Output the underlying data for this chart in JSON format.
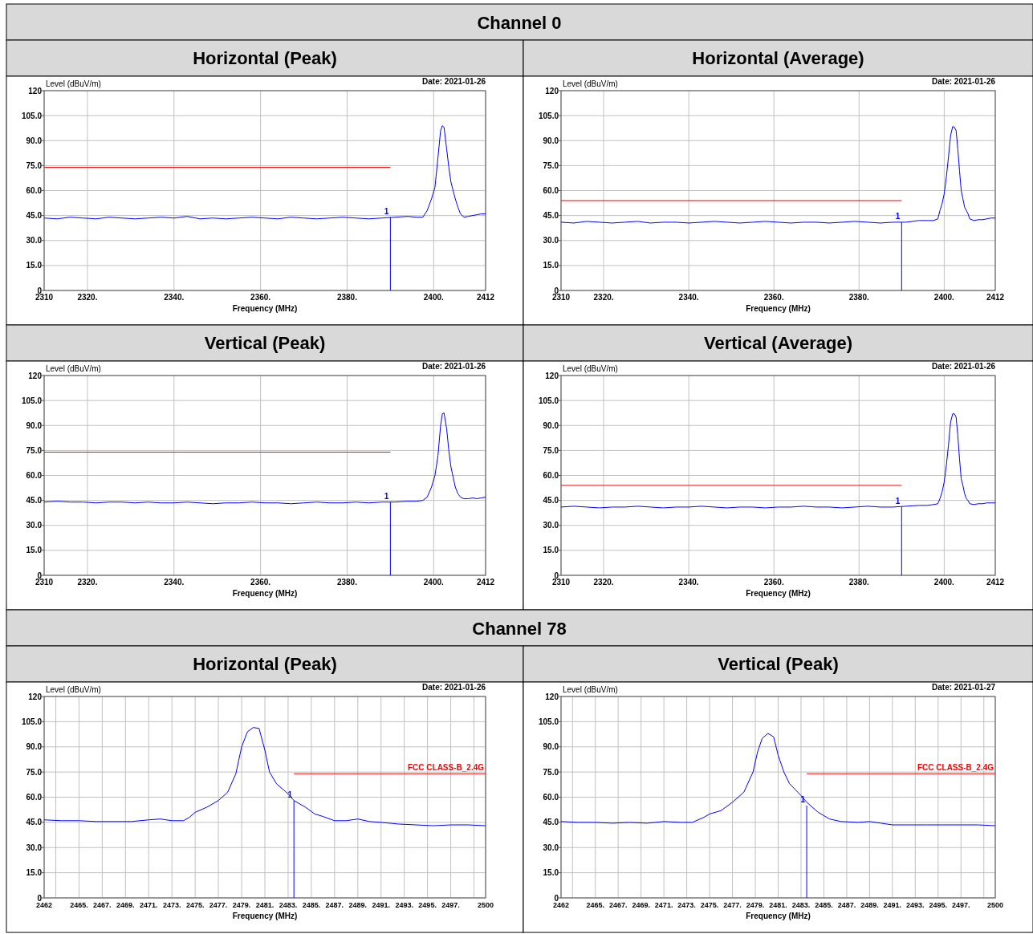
{
  "chart_data": [
    {
      "type": "line",
      "subtitle": "Channel 0",
      "title": "Horizontal (Peak)",
      "xlabel": "Frequency (MHz)",
      "ylabel": "Level (dBuV/m)",
      "annotations": [
        "Date: 2021-01-26"
      ],
      "xlim": [
        2310,
        2412
      ],
      "ylim": [
        0,
        120
      ],
      "xticks": [
        2310,
        {
          "value": 2320,
          "label": "2320."
        },
        {
          "value": 2340,
          "label": "2340."
        },
        {
          "value": 2360,
          "label": "2360."
        },
        {
          "value": 2380,
          "label": "2380."
        },
        {
          "value": 2400,
          "label": "2400."
        },
        2412
      ],
      "yticks": [
        {
          "value": 0,
          "label": "0"
        },
        {
          "value": 15,
          "label": "15.0"
        },
        {
          "value": 30,
          "label": "30.0"
        },
        {
          "value": 45,
          "label": "45.0"
        },
        {
          "value": 60,
          "label": "60.0"
        },
        {
          "value": 75,
          "label": "75.0"
        },
        {
          "value": 90,
          "label": "90.0"
        },
        {
          "value": 105,
          "label": "105.0"
        },
        {
          "value": 120,
          "label": "120"
        }
      ],
      "grid": true,
      "series": [
        {
          "color": "#0000ff",
          "x": [
            2310,
            2313,
            2316,
            2319,
            2322,
            2325,
            2328,
            2331,
            2334,
            2337,
            2340,
            2343,
            2346,
            2349,
            2352,
            2355,
            2358,
            2361,
            2364,
            2367,
            2370,
            2373,
            2376,
            2379,
            2382,
            2385,
            2388,
            2391,
            2394,
            2396,
            2397.5,
            2398.5,
            2399.5,
            2400.3,
            2401,
            2401.6,
            2402,
            2402.4,
            2403,
            2403.5,
            2404,
            2404.5,
            2405,
            2405.6,
            2406.2,
            2407,
            2408,
            2409,
            2410,
            2411,
            2412
          ],
          "values": [
            43.5,
            43,
            44,
            43.5,
            43,
            44,
            43.5,
            43,
            43.5,
            44,
            43.5,
            44.5,
            43,
            43.5,
            43,
            43.5,
            44,
            43.5,
            43,
            44,
            43.5,
            43,
            43.5,
            44,
            43.5,
            43,
            43.5,
            44,
            44.5,
            44,
            44,
            48,
            55,
            62,
            80,
            96,
            99,
            98,
            85,
            74,
            65,
            60,
            55,
            50,
            46,
            44,
            44.5,
            45,
            45.5,
            46,
            46
          ]
        },
        {
          "color": "#ff0000",
          "x": [
            2310,
            2390
          ],
          "values": [
            74,
            74
          ]
        },
        {
          "name": "1",
          "color": "#0000ff",
          "x": [
            2390,
            2390
          ],
          "values": [
            0,
            44
          ]
        }
      ]
    },
    {
      "type": "line",
      "title": "Horizontal (Average)",
      "xlabel": "Frequency (MHz)",
      "ylabel": "Level (dBuV/m)",
      "annotations": [
        "Date: 2021-01-26"
      ],
      "xlim": [
        2310,
        2412
      ],
      "ylim": [
        0,
        120
      ],
      "xticks": [
        2310,
        {
          "value": 2320,
          "label": "2320."
        },
        {
          "value": 2340,
          "label": "2340."
        },
        {
          "value": 2360,
          "label": "2360."
        },
        {
          "value": 2380,
          "label": "2380."
        },
        {
          "value": 2400,
          "label": "2400."
        },
        2412
      ],
      "yticks": [
        {
          "value": 0,
          "label": "0"
        },
        {
          "value": 15,
          "label": "15.0"
        },
        {
          "value": 30,
          "label": "30.0"
        },
        {
          "value": 45,
          "label": "45.0"
        },
        {
          "value": 60,
          "label": "60.0"
        },
        {
          "value": 75,
          "label": "75.0"
        },
        {
          "value": 90,
          "label": "90.0"
        },
        {
          "value": 105,
          "label": "105.0"
        },
        {
          "value": 120,
          "label": "120"
        }
      ],
      "grid": true,
      "series": [
        {
          "color": "#0000ff",
          "x": [
            2310,
            2313,
            2316,
            2319,
            2322,
            2325,
            2328,
            2331,
            2334,
            2337,
            2340,
            2343,
            2346,
            2349,
            2352,
            2355,
            2358,
            2361,
            2364,
            2367,
            2370,
            2373,
            2376,
            2379,
            2382,
            2385,
            2388,
            2391,
            2394,
            2396,
            2397.5,
            2398.5,
            2399,
            2399.5,
            2400,
            2400.5,
            2401,
            2401.5,
            2402,
            2402.4,
            2402.8,
            2403.2,
            2403.6,
            2404,
            2404.4,
            2404.8,
            2405.2,
            2405.6,
            2406,
            2407,
            2408,
            2409,
            2410,
            2411,
            2412
          ],
          "values": [
            41,
            40.5,
            41.5,
            41,
            40.5,
            41,
            41.5,
            40.5,
            41,
            41,
            40.5,
            41,
            41.5,
            41,
            40.5,
            41,
            41.5,
            41,
            40.5,
            41,
            41,
            40.5,
            41,
            41.5,
            41,
            40.5,
            41,
            41,
            42,
            42,
            42,
            43,
            48,
            52,
            58,
            68,
            80,
            93,
            98.5,
            98,
            96,
            85,
            72,
            60,
            55,
            50,
            48,
            46,
            43,
            42,
            42.5,
            42.5,
            43,
            43.5,
            43.5
          ]
        },
        {
          "color": "#ff0000",
          "x": [
            2310,
            2390
          ],
          "values": [
            54,
            54
          ]
        },
        {
          "name": "1",
          "color": "#0000ff",
          "x": [
            2390,
            2390
          ],
          "values": [
            0,
            41
          ]
        }
      ]
    },
    {
      "type": "line",
      "title": "Vertical (Peak)",
      "xlabel": "Frequency (MHz)",
      "ylabel": "Level (dBuV/m)",
      "annotations": [
        "Date: 2021-01-26"
      ],
      "xlim": [
        2310,
        2412
      ],
      "ylim": [
        0,
        120
      ],
      "xticks": [
        2310,
        {
          "value": 2320,
          "label": "2320."
        },
        {
          "value": 2340,
          "label": "2340."
        },
        {
          "value": 2360,
          "label": "2360."
        },
        {
          "value": 2380,
          "label": "2380."
        },
        {
          "value": 2400,
          "label": "2400."
        },
        2412
      ],
      "yticks": [
        {
          "value": 0,
          "label": "0"
        },
        {
          "value": 15,
          "label": "15.0"
        },
        {
          "value": 30,
          "label": "30.0"
        },
        {
          "value": 45,
          "label": "45.0"
        },
        {
          "value": 60,
          "label": "60.0"
        },
        {
          "value": 75,
          "label": "75.0"
        },
        {
          "value": 90,
          "label": "90.0"
        },
        {
          "value": 105,
          "label": "105.0"
        },
        {
          "value": 120,
          "label": "120"
        }
      ],
      "grid": true,
      "series": [
        {
          "color": "#0000ff",
          "x": [
            2310,
            2313,
            2316,
            2319,
            2322,
            2325,
            2328,
            2331,
            2334,
            2337,
            2340,
            2343,
            2346,
            2349,
            2352,
            2355,
            2358,
            2361,
            2364,
            2367,
            2370,
            2373,
            2376,
            2379,
            2382,
            2385,
            2388,
            2391,
            2394,
            2396,
            2397.5,
            2398.5,
            2399.5,
            2400.3,
            2401,
            2401.6,
            2402,
            2402.4,
            2403,
            2403.5,
            2404,
            2404.5,
            2405,
            2405.6,
            2406.2,
            2407,
            2408,
            2409,
            2410,
            2411,
            2412
          ],
          "values": [
            44,
            44.5,
            44,
            44,
            43.5,
            44,
            44,
            43.5,
            44,
            43.5,
            43.5,
            44,
            43.5,
            43,
            43.5,
            43.5,
            44,
            43.5,
            43.5,
            43,
            43.5,
            44,
            43.5,
            43.5,
            44,
            43.5,
            44,
            44,
            44.5,
            44.5,
            45,
            47,
            53,
            60,
            72,
            90,
            97,
            97.5,
            88,
            75,
            65,
            59,
            53,
            49,
            47,
            46,
            46,
            46.5,
            46,
            46.5,
            47
          ]
        },
        {
          "color": "#ff0000",
          "x": [
            2310,
            2390
          ],
          "values": [
            74,
            74
          ]
        },
        {
          "name": "1",
          "color": "#0000ff",
          "x": [
            2390,
            2390
          ],
          "values": [
            0,
            44
          ]
        }
      ]
    },
    {
      "type": "line",
      "title": "Vertical (Average)",
      "xlabel": "Frequency (MHz)",
      "ylabel": "Level (dBuV/m)",
      "annotations": [
        "Date: 2021-01-26"
      ],
      "xlim": [
        2310,
        2412
      ],
      "ylim": [
        0,
        120
      ],
      "xticks": [
        2310,
        {
          "value": 2320,
          "label": "2320."
        },
        {
          "value": 2340,
          "label": "2340."
        },
        {
          "value": 2360,
          "label": "2360."
        },
        {
          "value": 2380,
          "label": "2380."
        },
        {
          "value": 2400,
          "label": "2400."
        },
        2412
      ],
      "yticks": [
        {
          "value": 0,
          "label": "0"
        },
        {
          "value": 15,
          "label": "15.0"
        },
        {
          "value": 30,
          "label": "30.0"
        },
        {
          "value": 45,
          "label": "45.0"
        },
        {
          "value": 60,
          "label": "60.0"
        },
        {
          "value": 75,
          "label": "75.0"
        },
        {
          "value": 90,
          "label": "90.0"
        },
        {
          "value": 105,
          "label": "105.0"
        },
        {
          "value": 120,
          "label": "120"
        }
      ],
      "grid": true,
      "series": [
        {
          "color": "#0000ff",
          "x": [
            2310,
            2313,
            2316,
            2319,
            2322,
            2325,
            2328,
            2331,
            2334,
            2337,
            2340,
            2343,
            2346,
            2349,
            2352,
            2355,
            2358,
            2361,
            2364,
            2367,
            2370,
            2373,
            2376,
            2379,
            2382,
            2385,
            2388,
            2391,
            2394,
            2396,
            2397.5,
            2398.5,
            2399,
            2399.5,
            2400,
            2400.5,
            2401,
            2401.5,
            2402,
            2402.4,
            2402.8,
            2403.2,
            2403.6,
            2404,
            2404.4,
            2404.8,
            2405.2,
            2405.6,
            2406,
            2407,
            2408,
            2409,
            2410,
            2411,
            2412
          ],
          "values": [
            41,
            41.5,
            41,
            40.5,
            41,
            41,
            41.5,
            41,
            40.5,
            41,
            41,
            41.5,
            41,
            40.5,
            41,
            41,
            40.5,
            41,
            41,
            41.5,
            41,
            41,
            40.5,
            41,
            41.5,
            41,
            41,
            41.5,
            42,
            42,
            42.5,
            43,
            46,
            50,
            56,
            66,
            78,
            92,
            97,
            97,
            95,
            84,
            70,
            58,
            54,
            49,
            46,
            45,
            43,
            42.5,
            43,
            43,
            43.5,
            43.5,
            43.5
          ]
        },
        {
          "color": "#ff0000",
          "x": [
            2310,
            2390
          ],
          "values": [
            54,
            54
          ]
        },
        {
          "name": "1",
          "color": "#0000ff",
          "x": [
            2390,
            2390
          ],
          "values": [
            0,
            41
          ]
        }
      ]
    },
    {
      "type": "line",
      "subtitle": "Channel 78",
      "title": "Horizontal (Peak)",
      "xlabel": "Frequency (MHz)",
      "ylabel": "Level (dBuV/m)",
      "annotations": [
        "Date: 2021-01-26"
      ],
      "xlim": [
        2462,
        2500
      ],
      "ylim": [
        0,
        120
      ],
      "xticks": [
        2462,
        {
          "value": 2463,
          "label": null
        },
        {
          "value": 2465,
          "label": "2465."
        },
        {
          "value": 2467,
          "label": "2467."
        },
        {
          "value": 2469,
          "label": "2469."
        },
        {
          "value": 2471,
          "label": "2471."
        },
        {
          "value": 2473,
          "label": "2473."
        },
        {
          "value": 2475,
          "label": "2475."
        },
        {
          "value": 2477,
          "label": "2477."
        },
        {
          "value": 2479,
          "label": "2479."
        },
        {
          "value": 2481,
          "label": "2481."
        },
        {
          "value": 2483,
          "label": "2483."
        },
        {
          "value": 2485,
          "label": "2485."
        },
        {
          "value": 2487,
          "label": "2487."
        },
        {
          "value": 2489,
          "label": "2489."
        },
        {
          "value": 2491,
          "label": "2491."
        },
        {
          "value": 2493,
          "label": "2493."
        },
        {
          "value": 2495,
          "label": "2495."
        },
        {
          "value": 2497,
          "label": "2497."
        },
        {
          "value": 2499,
          "label": null
        },
        2500
      ],
      "yticks": [
        {
          "value": 0,
          "label": "0"
        },
        {
          "value": 15,
          "label": "15.0"
        },
        {
          "value": 30,
          "label": "30.0"
        },
        {
          "value": 45,
          "label": "45.0"
        },
        {
          "value": 60,
          "label": "60.0"
        },
        {
          "value": 75,
          "label": "75.0"
        },
        {
          "value": 90,
          "label": "90.0"
        },
        {
          "value": 105,
          "label": "105.0"
        },
        {
          "value": 120,
          "label": "120"
        }
      ],
      "grid": true,
      "series": [
        {
          "color": "#0000ff",
          "x": [
            2462,
            2463.5,
            2465,
            2466.5,
            2468,
            2469.5,
            2471,
            2472,
            2473,
            2474,
            2474.5,
            2475,
            2476,
            2477,
            2477.8,
            2478.5,
            2479,
            2479.5,
            2480,
            2480.5,
            2481,
            2481.4,
            2482,
            2483,
            2483.5,
            2484.5,
            2485.3,
            2486,
            2487,
            2488,
            2489,
            2490,
            2491,
            2492.5,
            2494,
            2495.5,
            2497,
            2498.5,
            2500
          ],
          "values": [
            46.5,
            46,
            46,
            45.5,
            45.5,
            45.5,
            46.5,
            47,
            46,
            46,
            48,
            51,
            54,
            58,
            63,
            74,
            90,
            99,
            101.5,
            101,
            88,
            75,
            68,
            62,
            58,
            54,
            50,
            48.5,
            46,
            46,
            47,
            45.5,
            45,
            44,
            43.5,
            43,
            43.5,
            43.5,
            43
          ]
        },
        {
          "name": "FCC CLASS-B_2.4G",
          "color": "#ff0000",
          "x": [
            2483.5,
            2500
          ],
          "values": [
            74,
            74
          ]
        },
        {
          "name": "1",
          "color": "#0000ff",
          "x": [
            2483.5,
            2483.5
          ],
          "values": [
            0,
            58
          ]
        }
      ]
    },
    {
      "type": "line",
      "title": "Vertical (Peak)",
      "xlabel": "Frequency (MHz)",
      "ylabel": "Level (dBuV/m)",
      "annotations": [
        "Date: 2021-01-27"
      ],
      "xlim": [
        2462,
        2500
      ],
      "ylim": [
        0,
        120
      ],
      "xticks": [
        2462,
        {
          "value": 2463,
          "label": null
        },
        {
          "value": 2465,
          "label": "2465."
        },
        {
          "value": 2467,
          "label": "2467."
        },
        {
          "value": 2469,
          "label": "2469."
        },
        {
          "value": 2471,
          "label": "2471."
        },
        {
          "value": 2473,
          "label": "2473."
        },
        {
          "value": 2475,
          "label": "2475."
        },
        {
          "value": 2477,
          "label": "2477."
        },
        {
          "value": 2479,
          "label": "2479."
        },
        {
          "value": 2481,
          "label": "2481."
        },
        {
          "value": 2483,
          "label": "2483."
        },
        {
          "value": 2485,
          "label": "2485."
        },
        {
          "value": 2487,
          "label": "2487."
        },
        {
          "value": 2489,
          "label": "2489."
        },
        {
          "value": 2491,
          "label": "2491."
        },
        {
          "value": 2493,
          "label": "2493."
        },
        {
          "value": 2495,
          "label": "2495."
        },
        {
          "value": 2497,
          "label": "2497."
        },
        {
          "value": 2499,
          "label": null
        },
        2500
      ],
      "yticks": [
        {
          "value": 0,
          "label": "0"
        },
        {
          "value": 15,
          "label": "15.0"
        },
        {
          "value": 30,
          "label": "30.0"
        },
        {
          "value": 45,
          "label": "45.0"
        },
        {
          "value": 60,
          "label": "60.0"
        },
        {
          "value": 75,
          "label": "75.0"
        },
        {
          "value": 90,
          "label": "90.0"
        },
        {
          "value": 105,
          "label": "105.0"
        },
        {
          "value": 120,
          "label": "120"
        }
      ],
      "grid": true,
      "series": [
        {
          "color": "#0000ff",
          "x": [
            2462,
            2463.5,
            2465,
            2466.5,
            2468,
            2469.5,
            2471,
            2472.5,
            2473.5,
            2474.5,
            2475,
            2476,
            2477,
            2478,
            2478.8,
            2479.2,
            2479.6,
            2480.1,
            2480.6,
            2481,
            2481.5,
            2482,
            2483,
            2483.5,
            2484.5,
            2485.5,
            2486.5,
            2488,
            2489,
            2490,
            2491,
            2492.5,
            2494,
            2495.5,
            2497,
            2498.5,
            2500
          ],
          "values": [
            45.5,
            45,
            45,
            44.5,
            45,
            44.5,
            45.5,
            45,
            45,
            48,
            50,
            52,
            57,
            63,
            75,
            87,
            95,
            98,
            96,
            85,
            75,
            68,
            61,
            57,
            51,
            47,
            45.5,
            45,
            45.5,
            44.5,
            43.5,
            43.5,
            43.5,
            43.5,
            43.5,
            43.5,
            43
          ]
        },
        {
          "name": "FCC CLASS-B_2.4G",
          "color": "#ff0000",
          "x": [
            2483.5,
            2500
          ],
          "values": [
            74,
            74
          ]
        },
        {
          "name": "1",
          "color": "#0000ff",
          "x": [
            2483.5,
            2483.5
          ],
          "values": [
            0,
            55
          ]
        }
      ]
    }
  ]
}
